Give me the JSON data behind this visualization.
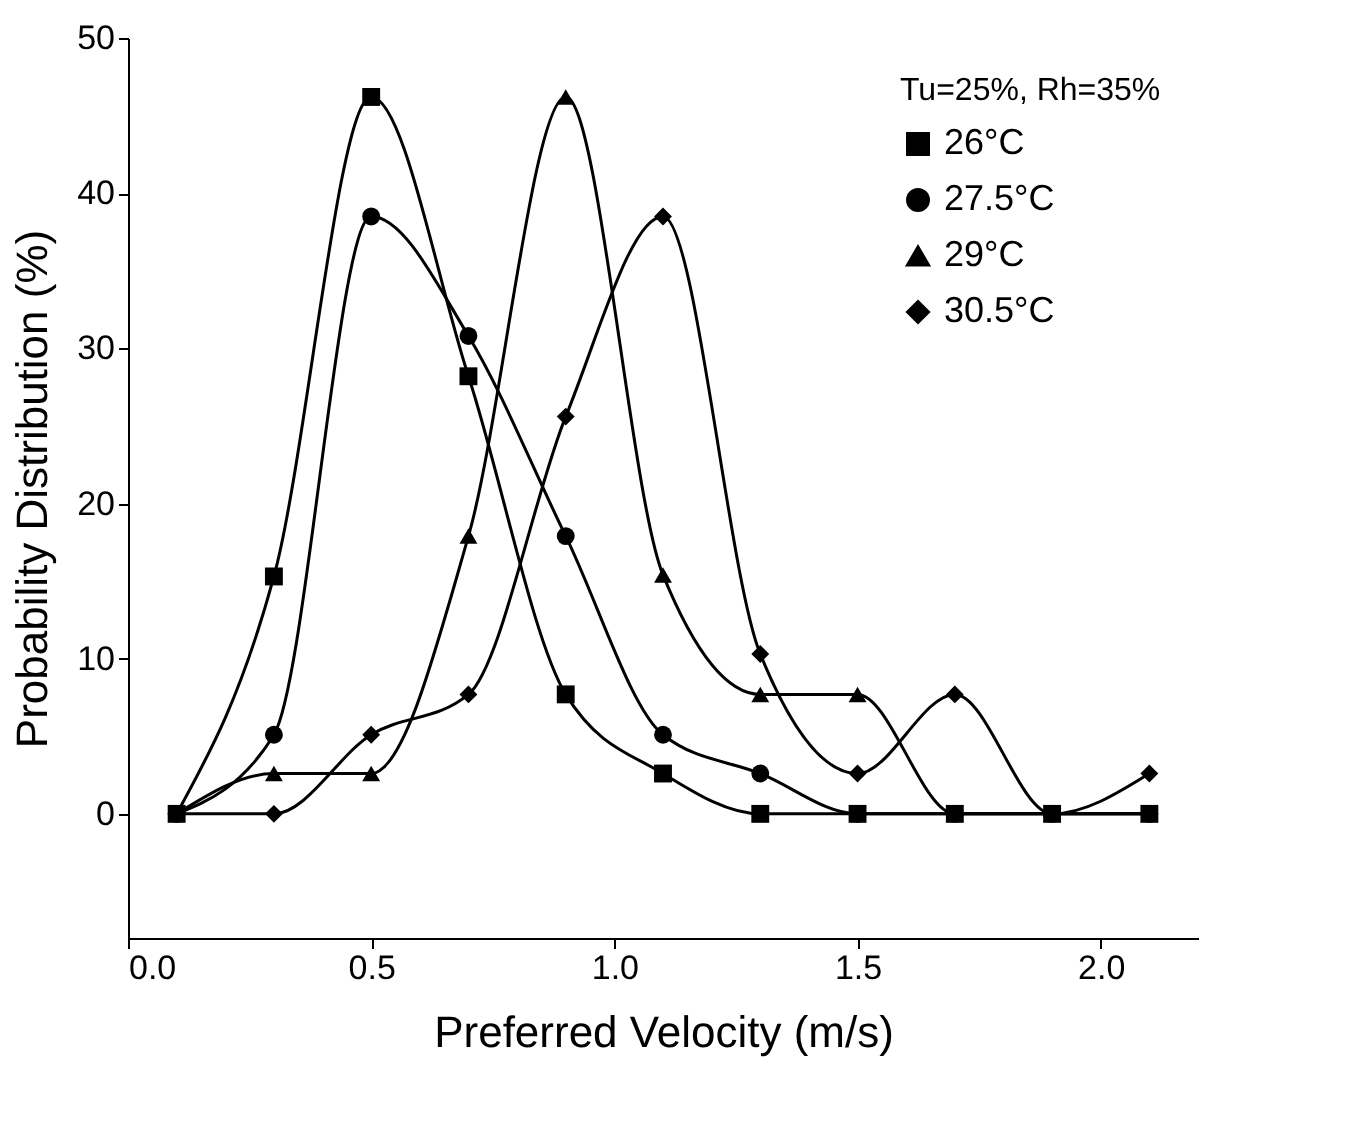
{
  "chart_data": {
    "type": "line",
    "xlabel": "Preferred Velocity (m/s)",
    "ylabel": "Probability Distribution (%)",
    "legend_title": "Tu=25%, Rh=35%",
    "x": [
      0.1,
      0.3,
      0.5,
      0.7,
      0.9,
      1.1,
      1.3,
      1.5,
      1.7,
      1.9,
      2.1
    ],
    "series": [
      {
        "name": "26°C",
        "color": "#000000",
        "marker": "square",
        "values": [
          0,
          15.3,
          46.2,
          28.2,
          7.7,
          2.6,
          0,
          0,
          0,
          0,
          0
        ]
      },
      {
        "name": "27.5°C",
        "color": "#000000",
        "marker": "circle",
        "values": [
          0,
          5.1,
          38.5,
          30.8,
          17.9,
          5.1,
          2.6,
          0,
          0,
          0,
          0
        ]
      },
      {
        "name": "29°C",
        "color": "#000000",
        "marker": "triangle",
        "values": [
          0,
          2.6,
          2.6,
          17.9,
          46.2,
          15.4,
          7.7,
          7.7,
          0,
          0,
          0
        ]
      },
      {
        "name": "30.5°C",
        "color": "#000000",
        "marker": "diamond",
        "values": [
          0,
          0,
          5.1,
          7.7,
          25.6,
          38.5,
          10.3,
          2.6,
          7.7,
          0,
          2.6
        ]
      }
    ],
    "xlim": [
      0,
      2.2
    ],
    "ylim": [
      -8,
      50
    ],
    "xticks": [
      {
        "value": 0,
        "label": "0.0"
      },
      0.5,
      {
        "value": 1,
        "label": "1.0"
      },
      1.5,
      {
        "value": 2,
        "label": "2.0"
      }
    ],
    "yticks": [
      0,
      10,
      20,
      30,
      40,
      50
    ],
    "grid": false,
    "legend": "top right",
    "line_style": "solid"
  }
}
